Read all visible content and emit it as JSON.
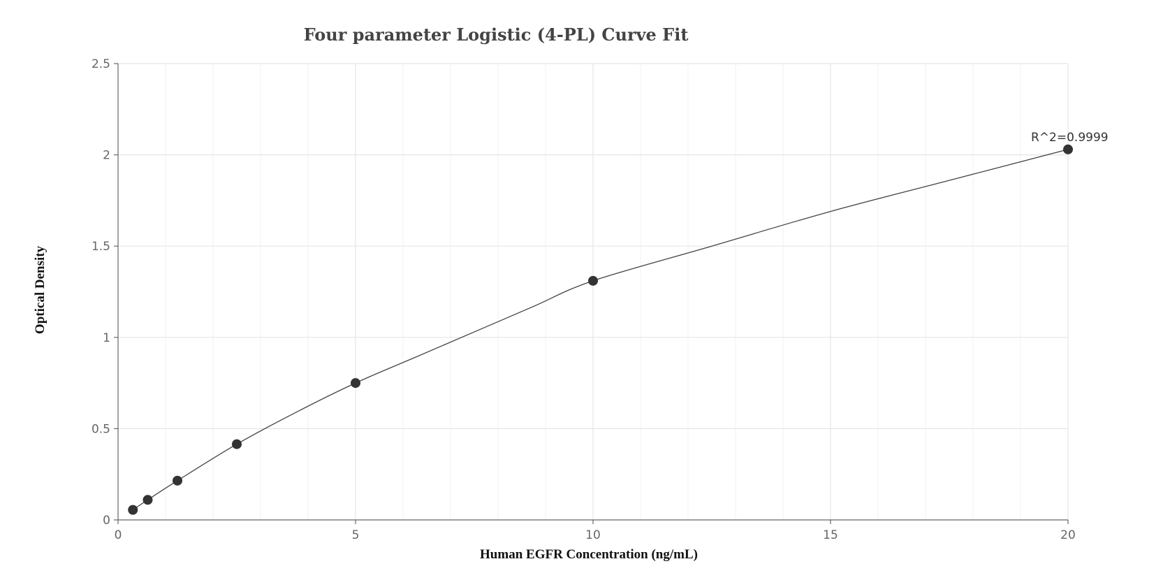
{
  "chart_data": {
    "type": "scatter",
    "title": "Four parameter Logistic (4-PL) Curve Fit",
    "xlabel": "Human EGFR Concentration (ng/mL)",
    "ylabel": "Optical Density",
    "xlim": [
      0,
      20
    ],
    "ylim": [
      0,
      2.5
    ],
    "x_ticks": [
      0,
      5,
      10,
      15,
      20
    ],
    "y_ticks": [
      0,
      0.5,
      1,
      1.5,
      2,
      2.5
    ],
    "x_tick_labels": [
      "0",
      "5",
      "10",
      "15",
      "20"
    ],
    "y_tick_labels": [
      "0",
      "0.5",
      "1",
      "1.5",
      "2",
      "2.5"
    ],
    "grid": true,
    "series": [
      {
        "type": "scatter",
        "x": [
          0.3125,
          0.625,
          1.25,
          2.5,
          5,
          10,
          20
        ],
        "y": [
          0.055,
          0.11,
          0.215,
          0.415,
          0.75,
          1.31,
          2.03
        ]
      },
      {
        "type": "line",
        "fit": "4-PL",
        "x": [
          0.3125,
          0.625,
          1.25,
          2.5,
          3.75,
          5,
          6.25,
          7.5,
          8.75,
          10,
          12.5,
          15,
          17.5,
          20
        ],
        "y": [
          0.055,
          0.11,
          0.215,
          0.415,
          0.59,
          0.75,
          0.89,
          1.03,
          1.17,
          1.31,
          1.5,
          1.69,
          1.86,
          2.03
        ]
      }
    ],
    "annotations": [
      {
        "text": "R^2=0.9999",
        "x": 20,
        "y": 2.03
      }
    ],
    "colors": {
      "point": "#333333",
      "line": "#444444",
      "grid": "#e3e6e8",
      "axis": "#666666"
    }
  }
}
